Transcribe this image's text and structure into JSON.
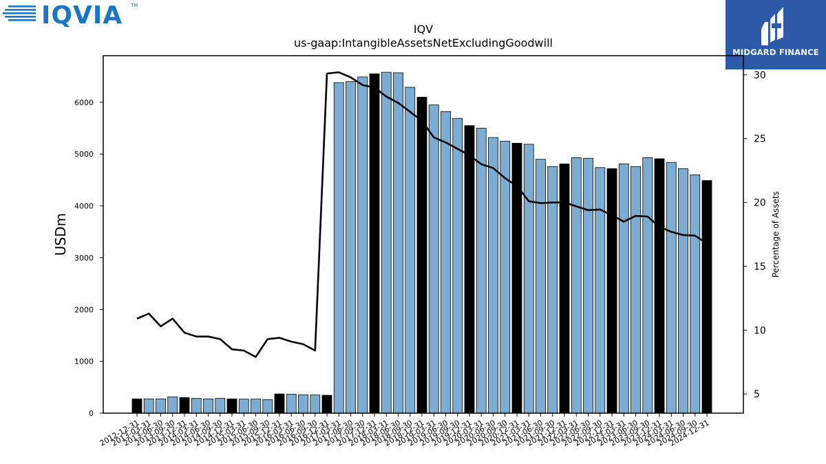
{
  "logos": {
    "left_brand": "IQVIA",
    "left_tm": "TM",
    "right_brand": "MIDGARD FINANCE"
  },
  "chart_data": {
    "type": "bar",
    "title": "IQV",
    "subtitle": "us-gaap:IntangibleAssetsNetExcludingGoodwill",
    "ylabel": "USDm",
    "y2label": "Percentage of Assets",
    "ylim": [
      0,
      6900
    ],
    "y2lim": [
      3.5,
      31.5
    ],
    "yticks": [
      0,
      1000,
      2000,
      3000,
      4000,
      5000,
      6000
    ],
    "y2ticks": [
      5,
      10,
      15,
      20,
      25,
      30
    ],
    "grid": false,
    "colors": {
      "quarter": "#7eadd4",
      "year_end": "#000000",
      "line": "#000000"
    },
    "categories": [
      "2012-12-31",
      "2013-03-31",
      "2013-06-30",
      "2013-09-30",
      "2013-12-31",
      "2014-03-31",
      "2014-06-30",
      "2014-09-30",
      "2014-12-31",
      "2015-03-31",
      "2015-06-30",
      "2015-09-30",
      "2015-12-31",
      "2016-03-31",
      "2016-06-30",
      "2016-09-30",
      "2016-12-31",
      "2017-03-31",
      "2017-06-30",
      "2017-09-30",
      "2017-12-31",
      "2018-03-31",
      "2018-06-30",
      "2018-09-30",
      "2018-12-31",
      "2019-03-31",
      "2019-06-30",
      "2019-09-30",
      "2019-12-31",
      "2020-03-31",
      "2020-06-30",
      "2020-09-30",
      "2020-12-31",
      "2021-03-31",
      "2021-06-30",
      "2021-09-30",
      "2021-12-31",
      "2022-03-31",
      "2022-06-30",
      "2022-09-30",
      "2022-12-31",
      "2023-03-31",
      "2023-06-30",
      "2023-09-30",
      "2023-12-31",
      "2024-03-31",
      "2024-06-30",
      "2024-09-30",
      "2024-12-31"
    ],
    "values": [
      275,
      275,
      275,
      315,
      300,
      285,
      275,
      285,
      275,
      270,
      270,
      260,
      370,
      365,
      355,
      350,
      345,
      6380,
      6400,
      6490,
      6550,
      6580,
      6570,
      6290,
      6100,
      5950,
      5820,
      5690,
      5550,
      5500,
      5320,
      5250,
      5210,
      5190,
      4900,
      4760,
      4810,
      4930,
      4920,
      4740,
      4720,
      4810,
      4760,
      4930,
      4910,
      4840,
      4720,
      4600,
      4490
    ],
    "year_end": [
      true,
      false,
      false,
      false,
      true,
      false,
      false,
      false,
      true,
      false,
      false,
      false,
      true,
      false,
      false,
      false,
      true,
      false,
      false,
      false,
      true,
      false,
      false,
      false,
      true,
      false,
      false,
      false,
      true,
      false,
      false,
      false,
      true,
      false,
      false,
      false,
      true,
      false,
      false,
      false,
      true,
      false,
      false,
      false,
      true,
      false,
      false,
      false,
      true
    ],
    "line_pct": [
      10.9,
      11.3,
      10.3,
      10.9,
      9.8,
      9.5,
      9.5,
      9.3,
      8.5,
      8.4,
      7.9,
      9.3,
      9.4,
      9.1,
      8.9,
      8.4,
      30.1,
      30.2,
      29.8,
      29.2,
      29.0,
      28.3,
      27.8,
      27.1,
      26.4,
      25.1,
      24.7,
      24.2,
      23.7,
      23.0,
      22.7,
      21.9,
      21.3,
      20.1,
      19.95,
      20.0,
      20.0,
      19.7,
      19.4,
      19.45,
      19.0,
      18.5,
      18.95,
      18.9,
      18.1,
      17.7,
      17.45,
      17.4,
      16.8
    ]
  }
}
